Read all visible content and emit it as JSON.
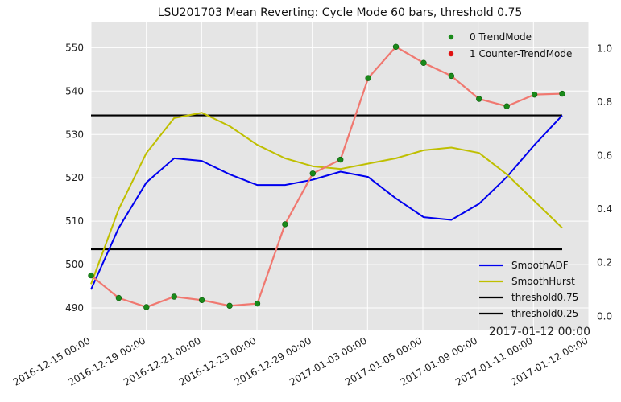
{
  "chart_data": {
    "type": "line",
    "title": "LSU201703 Mean Reverting: Cycle Mode 60 bars, threshold 0.75",
    "corner_label": "2017-01-12 00:00",
    "x_ticks": [
      "2016-12-15 00:00",
      "2016-12-19 00:00",
      "2016-12-21 00:00",
      "2016-12-23 00:00",
      "2016-12-29 00:00",
      "2017-01-03 00:00",
      "2017-01-05 00:00",
      "2017-01-09 00:00",
      "2017-01-11 00:00",
      "2017-01-12 00:00"
    ],
    "n_points": 18,
    "left_axis": {
      "ylim": [
        485,
        556
      ],
      "ticks": [
        490,
        500,
        510,
        520,
        530,
        540,
        550
      ]
    },
    "right_axis": {
      "ylim": [
        -0.05,
        1.1
      ],
      "ticks": [
        "0.0",
        "0.2",
        "0.4",
        "0.6",
        "0.8",
        "1.0"
      ]
    },
    "price": {
      "color": "#f07870",
      "values": [
        497.5,
        492.3,
        490.2,
        492.6,
        491.8,
        490.5,
        491.0,
        509.3,
        521.0,
        524.2,
        543.0,
        550.2,
        546.5,
        543.5,
        538.2,
        536.5,
        539.2,
        539.4
      ]
    },
    "scatter_legend": [
      {
        "label": "0 TrendMode",
        "color": "#1a8a1a"
      },
      {
        "label": "1 Counter-TrendMode",
        "color": "#e01010"
      }
    ],
    "series": [
      {
        "name": "SmoothADF",
        "color": "#0000ee",
        "axis": "right",
        "values": [
          0.1,
          0.33,
          0.5,
          0.59,
          0.58,
          0.53,
          0.49,
          0.49,
          0.51,
          0.54,
          0.52,
          0.44,
          0.37,
          0.36,
          0.42,
          0.52,
          0.64,
          0.75
        ]
      },
      {
        "name": "SmoothHurst",
        "color": "#bfbf00",
        "axis": "right",
        "values": [
          0.12,
          0.4,
          0.61,
          0.74,
          0.76,
          0.71,
          0.64,
          0.59,
          0.56,
          0.55,
          0.57,
          0.59,
          0.62,
          0.63,
          0.61,
          0.53,
          0.43,
          0.33
        ]
      },
      {
        "name": "threshold0.75",
        "color": "#000000",
        "axis": "right",
        "values": [
          0.75
        ]
      },
      {
        "name": "threshold0.25",
        "color": "#000000",
        "axis": "right",
        "values": [
          0.25
        ]
      }
    ]
  }
}
